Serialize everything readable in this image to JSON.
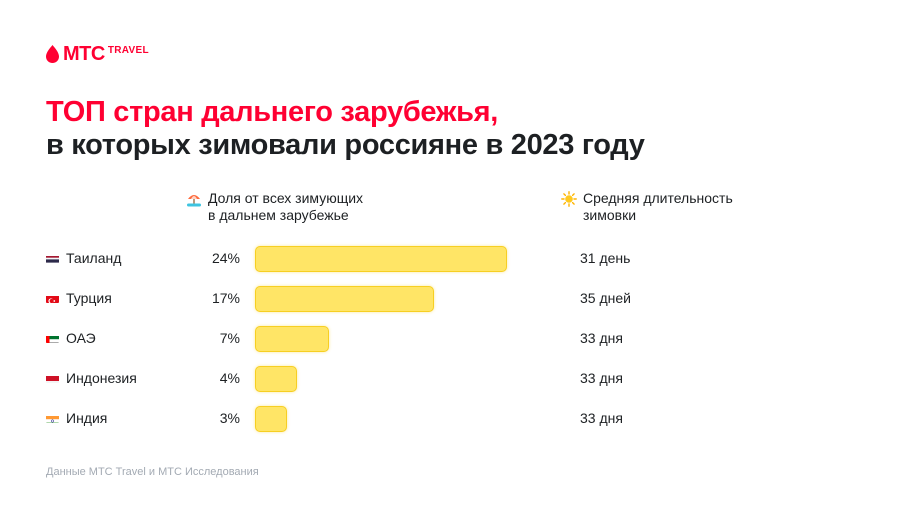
{
  "brand": {
    "name": "МТС",
    "suffix": "TRAVEL",
    "color": "#ff0032"
  },
  "title": {
    "line1": "ТОП стран дальнего зарубежья,",
    "line2": "в которых зимовали россияне в 2023 году"
  },
  "columns": {
    "share": {
      "icon": "beach-umbrella-icon",
      "label_line1": "Доля от всех зимующих",
      "label_line2": "в дальнем зарубежье"
    },
    "duration": {
      "icon": "sun-icon",
      "label_line1": "Средняя длительность",
      "label_line2": "зимовки"
    }
  },
  "chart_data": {
    "type": "bar",
    "orientation": "horizontal",
    "categories": [
      "Таиланд",
      "Турция",
      "ОАЭ",
      "Индонезия",
      "Индия"
    ],
    "values": [
      24,
      17,
      7,
      4,
      3
    ],
    "value_labels": [
      "24%",
      "17%",
      "7%",
      "4%",
      "3%"
    ],
    "durations": [
      "31 день",
      "35 дней",
      "33 дня",
      "33 дня",
      "33 дня"
    ],
    "flags": [
      "thailand-flag-icon",
      "turkey-flag-icon",
      "uae-flag-icon",
      "indonesia-flag-icon",
      "india-flag-icon"
    ],
    "bar_color": "#ffe566",
    "bar_border_color": "#f7cf22",
    "xlim": [
      0,
      24
    ]
  },
  "footer": {
    "source": "Данные МТС Travel и МТС Исследования"
  }
}
